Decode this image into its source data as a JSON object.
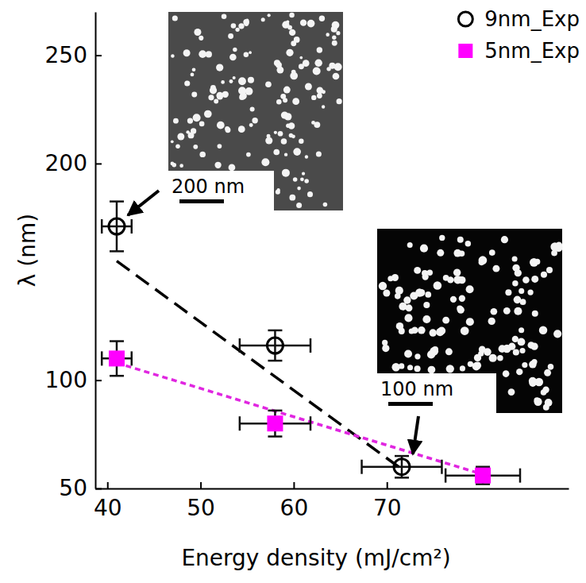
{
  "chart_data": {
    "type": "scatter",
    "x_label": "Energy density (mJ/cm²)",
    "y_label": "λ (nm)",
    "xlim": [
      38.7,
      89.5
    ],
    "ylim": [
      50,
      270
    ],
    "xticks": [
      40,
      50,
      60,
      70
    ],
    "yticks": [
      50,
      100,
      200,
      250
    ],
    "grid": false,
    "legend": "upper right",
    "series": [
      {
        "name": "9nm_Exp",
        "color": "#000000",
        "marker": "circle-open",
        "x": [
          41,
          58,
          71.6
        ],
        "values": [
          171,
          116,
          60
        ],
        "xerr": [
          1.6,
          3.8,
          4.3
        ],
        "yerr": [
          11.5,
          7,
          5
        ]
      },
      {
        "name": "5nm_Exp",
        "color": "#ff00ff",
        "marker": "square",
        "x": [
          41,
          58,
          80.3
        ],
        "values": [
          110,
          80,
          56
        ],
        "xerr": [
          1.6,
          3.8,
          4.0
        ],
        "yerr": [
          8,
          6,
          4
        ]
      },
      {
        "type": "line",
        "color": "#000000",
        "line_style": "dashed",
        "x": [
          41,
          71.9
        ],
        "values": [
          155,
          58
        ]
      },
      {
        "type": "line",
        "color": "#e026e0",
        "line_style": "dotted",
        "x": [
          41,
          80.3
        ],
        "values": [
          108,
          56.5
        ]
      }
    ],
    "annotations": [
      "200 nm",
      "100 nm"
    ]
  }
}
